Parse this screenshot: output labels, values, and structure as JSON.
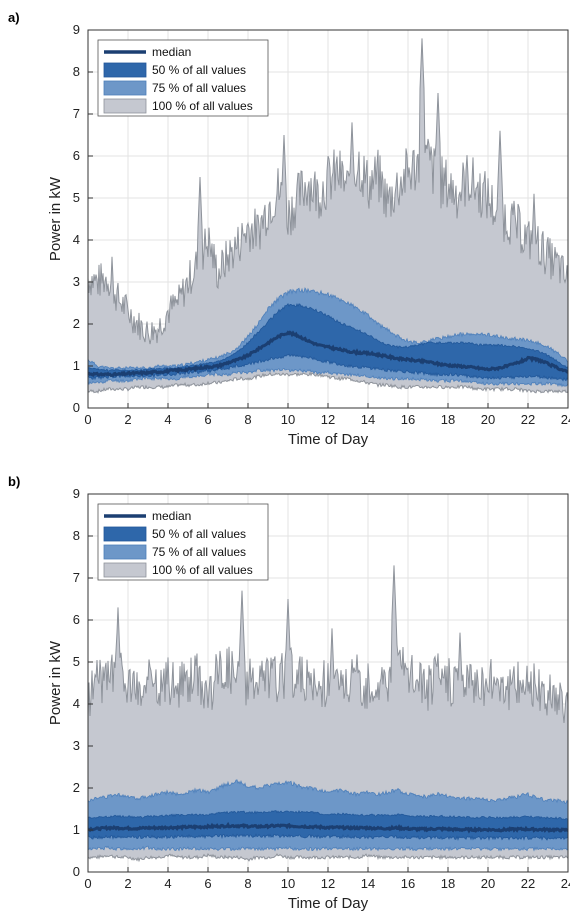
{
  "colors": {
    "median": "#1b3f72",
    "band50": "#2e67aa",
    "band75": "#6d97c8",
    "band100": "#c5c8d0",
    "band100_edge": "#8e939b",
    "grid": "#e3e3e3",
    "axis": "#333333"
  },
  "chart_data": [
    {
      "type": "area",
      "panel_label": "a)",
      "xlabel": "Time of Day",
      "ylabel": "Power in kW",
      "xlim": [
        0,
        24
      ],
      "ylim": [
        0,
        9
      ],
      "xticks": [
        "0",
        "2",
        "4",
        "6",
        "8",
        "10",
        "12",
        "14",
        "16",
        "18",
        "20",
        "22",
        "24"
      ],
      "yticks": [
        "0",
        "1",
        "2",
        "3",
        "4",
        "5",
        "6",
        "7",
        "8",
        "9"
      ],
      "grid": true,
      "legend_position": "top-left",
      "legend": [
        "median",
        "50 % of all values",
        "75 % of all values",
        "100 % of all values"
      ],
      "x": [
        0,
        0.5,
        1,
        1.5,
        2,
        2.5,
        3,
        3.5,
        4,
        4.5,
        5,
        5.5,
        6,
        6.5,
        7,
        7.5,
        8,
        8.5,
        9,
        9.5,
        10,
        10.5,
        11,
        11.5,
        12,
        12.5,
        13,
        13.5,
        14,
        14.5,
        15,
        15.5,
        16,
        16.5,
        17,
        17.5,
        18,
        18.5,
        19,
        19.5,
        20,
        20.5,
        21,
        21.5,
        22,
        22.5,
        23,
        23.5,
        24
      ],
      "series": [
        {
          "name": "100 % of all values",
          "lower": [
            0.4,
            0.4,
            0.45,
            0.45,
            0.45,
            0.5,
            0.5,
            0.5,
            0.5,
            0.55,
            0.55,
            0.55,
            0.6,
            0.6,
            0.65,
            0.7,
            0.7,
            0.75,
            0.8,
            0.8,
            0.8,
            0.8,
            0.8,
            0.8,
            0.75,
            0.7,
            0.7,
            0.65,
            0.6,
            0.55,
            0.55,
            0.5,
            0.5,
            0.5,
            0.5,
            0.5,
            0.5,
            0.5,
            0.5,
            0.45,
            0.45,
            0.45,
            0.45,
            0.45,
            0.4,
            0.4,
            0.4,
            0.4,
            0.4
          ],
          "upper": [
            3.1,
            3.0,
            3.1,
            2.6,
            2.3,
            2.0,
            1.8,
            1.9,
            2.3,
            2.5,
            3.0,
            3.5,
            4.0,
            3.2,
            3.6,
            3.9,
            4.3,
            4.2,
            4.8,
            5.2,
            4.6,
            5.0,
            5.4,
            5.1,
            5.4,
            5.6,
            5.2,
            5.9,
            5.3,
            5.5,
            4.9,
            5.3,
            5.6,
            5.8,
            5.9,
            5.4,
            5.3,
            5.1,
            5.5,
            5.2,
            5.0,
            4.6,
            4.5,
            4.3,
            4.0,
            3.9,
            3.6,
            3.4,
            3.0
          ],
          "peaks": [
            [
              1.2,
              3.6
            ],
            [
              5.6,
              5.5
            ],
            [
              9.8,
              6.5
            ],
            [
              13.2,
              6.8
            ],
            [
              16.7,
              8.8
            ],
            [
              17.5,
              7.5
            ],
            [
              20.6,
              6.6
            ],
            [
              22.3,
              5.1
            ]
          ]
        },
        {
          "name": "75 % of all values",
          "lower": [
            0.6,
            0.6,
            0.65,
            0.65,
            0.65,
            0.7,
            0.7,
            0.7,
            0.7,
            0.7,
            0.75,
            0.75,
            0.8,
            0.8,
            0.8,
            0.85,
            0.85,
            0.9,
            0.9,
            0.9,
            0.9,
            0.9,
            0.88,
            0.85,
            0.85,
            0.8,
            0.8,
            0.78,
            0.75,
            0.72,
            0.7,
            0.7,
            0.7,
            0.68,
            0.66,
            0.65,
            0.65,
            0.65,
            0.62,
            0.6,
            0.58,
            0.58,
            0.58,
            0.58,
            0.58,
            0.58,
            0.58,
            0.55,
            0.55
          ],
          "upper": [
            1.15,
            1.0,
            0.95,
            0.95,
            0.95,
            0.95,
            0.95,
            1.0,
            1.0,
            1.0,
            1.05,
            1.1,
            1.15,
            1.2,
            1.3,
            1.45,
            1.7,
            2.0,
            2.35,
            2.6,
            2.75,
            2.8,
            2.8,
            2.75,
            2.7,
            2.6,
            2.5,
            2.35,
            2.2,
            2.0,
            1.85,
            1.7,
            1.6,
            1.55,
            1.6,
            1.65,
            1.7,
            1.75,
            1.75,
            1.75,
            1.75,
            1.7,
            1.65,
            1.65,
            1.6,
            1.55,
            1.45,
            1.3,
            1.1
          ]
        },
        {
          "name": "50 % of all values",
          "lower": [
            0.72,
            0.72,
            0.74,
            0.75,
            0.75,
            0.76,
            0.77,
            0.78,
            0.8,
            0.82,
            0.84,
            0.86,
            0.88,
            0.92,
            0.95,
            1.0,
            1.05,
            1.1,
            1.15,
            1.2,
            1.25,
            1.25,
            1.2,
            1.15,
            1.1,
            1.05,
            1.0,
            0.98,
            0.95,
            0.93,
            0.9,
            0.88,
            0.86,
            0.84,
            0.82,
            0.8,
            0.8,
            0.78,
            0.76,
            0.74,
            0.72,
            0.72,
            0.72,
            0.74,
            0.75,
            0.74,
            0.72,
            0.7,
            0.68
          ],
          "upper": [
            0.95,
            0.92,
            0.9,
            0.9,
            0.9,
            0.9,
            0.92,
            0.94,
            0.95,
            0.97,
            1.0,
            1.03,
            1.06,
            1.1,
            1.2,
            1.35,
            1.55,
            1.8,
            2.05,
            2.3,
            2.45,
            2.45,
            2.4,
            2.3,
            2.2,
            2.05,
            1.95,
            1.85,
            1.75,
            1.6,
            1.5,
            1.45,
            1.45,
            1.5,
            1.55,
            1.55,
            1.55,
            1.55,
            1.55,
            1.5,
            1.5,
            1.5,
            1.48,
            1.45,
            1.4,
            1.35,
            1.25,
            1.1,
            0.95
          ]
        },
        {
          "name": "median",
          "values": [
            0.82,
            0.8,
            0.8,
            0.8,
            0.82,
            0.83,
            0.84,
            0.86,
            0.88,
            0.9,
            0.92,
            0.95,
            0.98,
            1.0,
            1.08,
            1.15,
            1.25,
            1.4,
            1.55,
            1.7,
            1.8,
            1.72,
            1.6,
            1.5,
            1.45,
            1.4,
            1.35,
            1.32,
            1.3,
            1.27,
            1.22,
            1.18,
            1.15,
            1.12,
            1.1,
            1.05,
            1.02,
            1.0,
            0.98,
            0.95,
            0.92,
            0.95,
            1.0,
            1.08,
            1.18,
            1.15,
            1.05,
            0.95,
            0.85
          ]
        }
      ]
    },
    {
      "type": "area",
      "panel_label": "b)",
      "xlabel": "Time of Day",
      "ylabel": "Power in kW",
      "xlim": [
        0,
        24
      ],
      "ylim": [
        0,
        9
      ],
      "xticks": [
        "0",
        "2",
        "4",
        "6",
        "8",
        "10",
        "12",
        "14",
        "16",
        "18",
        "20",
        "22",
        "24"
      ],
      "yticks": [
        "0",
        "1",
        "2",
        "3",
        "4",
        "5",
        "6",
        "7",
        "8",
        "9"
      ],
      "grid": true,
      "legend_position": "top-left",
      "legend": [
        "median",
        "50 % of all values",
        "75 % of all values",
        "100 % of all values"
      ],
      "x": [
        0,
        0.5,
        1,
        1.5,
        2,
        2.5,
        3,
        3.5,
        4,
        4.5,
        5,
        5.5,
        6,
        6.5,
        7,
        7.5,
        8,
        8.5,
        9,
        9.5,
        10,
        10.5,
        11,
        11.5,
        12,
        12.5,
        13,
        13.5,
        14,
        14.5,
        15,
        15.5,
        16,
        16.5,
        17,
        17.5,
        18,
        18.5,
        19,
        19.5,
        20,
        20.5,
        21,
        21.5,
        22,
        22.5,
        23,
        23.5,
        24
      ],
      "series": [
        {
          "name": "100 % of all values",
          "lower": [
            0.35,
            0.35,
            0.4,
            0.35,
            0.35,
            0.3,
            0.35,
            0.35,
            0.4,
            0.35,
            0.35,
            0.35,
            0.4,
            0.35,
            0.35,
            0.35,
            0.3,
            0.35,
            0.35,
            0.4,
            0.35,
            0.35,
            0.35,
            0.35,
            0.35,
            0.35,
            0.35,
            0.35,
            0.4,
            0.35,
            0.35,
            0.35,
            0.35,
            0.35,
            0.35,
            0.35,
            0.35,
            0.35,
            0.35,
            0.35,
            0.35,
            0.35,
            0.35,
            0.35,
            0.35,
            0.35,
            0.35,
            0.35,
            0.35
          ],
          "upper": [
            4.2,
            4.5,
            4.6,
            4.8,
            4.4,
            4.2,
            4.5,
            4.3,
            4.6,
            4.4,
            4.6,
            4.7,
            4.2,
            4.8,
            4.9,
            4.6,
            4.5,
            4.5,
            4.7,
            4.6,
            4.8,
            4.7,
            4.5,
            4.3,
            4.6,
            4.4,
            4.5,
            4.6,
            4.4,
            4.5,
            4.6,
            5.0,
            4.7,
            4.6,
            4.4,
            4.7,
            4.5,
            4.6,
            4.5,
            4.6,
            4.5,
            4.7,
            4.4,
            4.5,
            4.6,
            4.3,
            4.2,
            4.1,
            4.0
          ],
          "peaks": [
            [
              1.5,
              6.3
            ],
            [
              7.7,
              6.7
            ],
            [
              10.0,
              6.5
            ],
            [
              15.3,
              7.3
            ],
            [
              12.2,
              5.8
            ],
            [
              18.6,
              5.7
            ]
          ]
        },
        {
          "name": "75 % of all values",
          "lower": [
            0.55,
            0.55,
            0.58,
            0.55,
            0.55,
            0.55,
            0.58,
            0.55,
            0.55,
            0.55,
            0.57,
            0.55,
            0.55,
            0.55,
            0.55,
            0.55,
            0.57,
            0.55,
            0.55,
            0.55,
            0.57,
            0.55,
            0.55,
            0.55,
            0.56,
            0.55,
            0.55,
            0.55,
            0.56,
            0.55,
            0.55,
            0.55,
            0.56,
            0.55,
            0.55,
            0.55,
            0.55,
            0.55,
            0.55,
            0.55,
            0.55,
            0.55,
            0.55,
            0.55,
            0.55,
            0.55,
            0.55,
            0.55,
            0.55
          ],
          "upper": [
            1.7,
            1.75,
            1.8,
            1.85,
            1.8,
            1.75,
            1.8,
            1.85,
            1.9,
            1.85,
            1.9,
            1.95,
            1.9,
            2.0,
            2.1,
            2.15,
            2.05,
            2.0,
            2.05,
            2.1,
            2.15,
            2.05,
            2.0,
            1.95,
            1.9,
            1.95,
            1.9,
            1.85,
            1.9,
            1.85,
            1.9,
            1.95,
            1.85,
            1.8,
            1.8,
            1.85,
            1.8,
            1.75,
            1.75,
            1.75,
            1.7,
            1.7,
            1.75,
            1.8,
            1.85,
            1.75,
            1.7,
            1.7,
            1.65
          ]
        },
        {
          "name": "50 % of all values",
          "lower": [
            0.82,
            0.82,
            0.84,
            0.82,
            0.83,
            0.83,
            0.84,
            0.83,
            0.84,
            0.84,
            0.85,
            0.84,
            0.85,
            0.85,
            0.86,
            0.86,
            0.86,
            0.86,
            0.86,
            0.86,
            0.86,
            0.85,
            0.85,
            0.84,
            0.84,
            0.84,
            0.84,
            0.83,
            0.83,
            0.83,
            0.83,
            0.83,
            0.82,
            0.82,
            0.82,
            0.82,
            0.82,
            0.81,
            0.81,
            0.81,
            0.81,
            0.81,
            0.81,
            0.81,
            0.81,
            0.81,
            0.8,
            0.8,
            0.8
          ],
          "upper": [
            1.3,
            1.3,
            1.32,
            1.33,
            1.32,
            1.3,
            1.32,
            1.33,
            1.35,
            1.35,
            1.36,
            1.36,
            1.37,
            1.4,
            1.42,
            1.43,
            1.42,
            1.42,
            1.43,
            1.44,
            1.44,
            1.43,
            1.42,
            1.4,
            1.38,
            1.38,
            1.37,
            1.36,
            1.36,
            1.35,
            1.35,
            1.36,
            1.34,
            1.33,
            1.32,
            1.33,
            1.32,
            1.31,
            1.3,
            1.3,
            1.3,
            1.29,
            1.3,
            1.31,
            1.32,
            1.3,
            1.29,
            1.28,
            1.27
          ]
        },
        {
          "name": "median",
          "values": [
            1.02,
            1.03,
            1.05,
            1.05,
            1.04,
            1.04,
            1.05,
            1.05,
            1.06,
            1.06,
            1.07,
            1.07,
            1.08,
            1.09,
            1.1,
            1.1,
            1.09,
            1.08,
            1.09,
            1.1,
            1.1,
            1.09,
            1.08,
            1.07,
            1.06,
            1.06,
            1.05,
            1.05,
            1.05,
            1.04,
            1.04,
            1.05,
            1.03,
            1.02,
            1.02,
            1.03,
            1.02,
            1.01,
            1.01,
            1.01,
            1.01,
            1.0,
            1.01,
            1.02,
            1.02,
            1.01,
            1.01,
            1.0,
            1.0
          ]
        }
      ]
    }
  ]
}
